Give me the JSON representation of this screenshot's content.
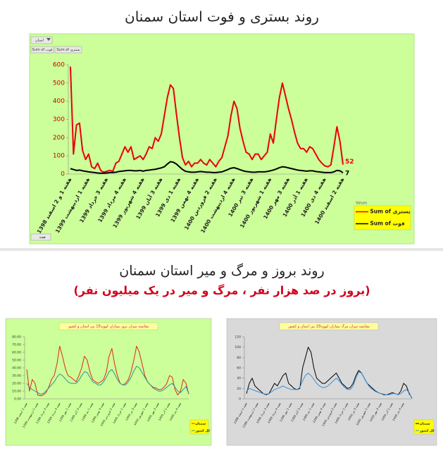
{
  "section": {
    "title": "روند بروز و مرگ و میر استان سمنان",
    "subtitle": "(بروز در صد هزار نفر ، مرگ و میر در یک میلیون نفر)"
  },
  "controls": {
    "filter": "استان",
    "fields": [
      "Sum of فوت",
      "Sum of بستری"
    ],
    "axis_field": "هفته",
    "legend_header": "Values"
  },
  "chart_data": [
    {
      "type": "line",
      "title": "روند بستری و فوت استان سمنان",
      "legend": "bottom-right",
      "data_labels": "last",
      "ylim": [
        0,
        600
      ],
      "yticks": [
        0,
        100,
        200,
        300,
        400,
        500,
        600
      ],
      "categories": [
        "هفته 1 و 2 اسفند 1398",
        null,
        null,
        null,
        null,
        null,
        "هفته 1 اردیبهشت 1399",
        null,
        null,
        null,
        null,
        null,
        "هفته 3 خرداد 1399",
        null,
        null,
        null,
        null,
        null,
        "هفته 4 مرداد 1399",
        null,
        null,
        null,
        null,
        null,
        "هفته 4 شهریور 1399",
        null,
        null,
        null,
        null,
        null,
        "هفته 3 آبان 1399",
        null,
        null,
        null,
        null,
        null,
        "هفته 1 دی 1399",
        null,
        null,
        null,
        null,
        null,
        "هفته 4 بهمن 1399",
        null,
        null,
        null,
        null,
        null,
        "هفته 2 فروردین 1400",
        null,
        null,
        null,
        null,
        null,
        "هفته 4 اردیبهشت 1400",
        null,
        null,
        null,
        null,
        null,
        "هفته 3 تیر 1400",
        null,
        null,
        null,
        null,
        null,
        "هفته 1 شهریور 1400",
        null,
        null,
        null,
        null,
        null,
        "هفته 3 مهر 1400",
        null,
        null,
        null,
        null,
        null,
        "هفته 1 آذر 1400",
        null,
        null,
        null,
        null,
        null,
        "هفته 4 دی 1400",
        null,
        null,
        null,
        null,
        null,
        "هفته 2 اسفند 1400"
      ],
      "series": [
        {
          "name": "Sum of بستری",
          "color": "#e8000b",
          "values": [
            590,
            110,
            270,
            280,
            130,
            80,
            110,
            40,
            30,
            60,
            20,
            10,
            15,
            20,
            15,
            60,
            70,
            110,
            150,
            120,
            150,
            80,
            90,
            100,
            80,
            110,
            150,
            140,
            200,
            180,
            220,
            320,
            420,
            490,
            470,
            330,
            200,
            90,
            50,
            70,
            40,
            60,
            60,
            80,
            60,
            50,
            80,
            60,
            40,
            70,
            90,
            150,
            210,
            320,
            400,
            360,
            250,
            180,
            120,
            110,
            80,
            110,
            110,
            80,
            100,
            120,
            220,
            170,
            300,
            420,
            500,
            430,
            360,
            300,
            230,
            170,
            140,
            140,
            120,
            150,
            140,
            110,
            80,
            60,
            45,
            40,
            50,
            150,
            260,
            180,
            52
          ]
        },
        {
          "name": "Sum of فوت",
          "color": "#000000",
          "values": [
            30,
            25,
            20,
            22,
            18,
            15,
            12,
            10,
            8,
            6,
            5,
            5,
            6,
            8,
            8,
            10,
            14,
            16,
            18,
            20,
            20,
            18,
            18,
            20,
            16,
            20,
            22,
            24,
            26,
            30,
            34,
            40,
            55,
            68,
            65,
            55,
            40,
            25,
            15,
            12,
            10,
            10,
            12,
            14,
            12,
            10,
            10,
            8,
            8,
            10,
            12,
            18,
            25,
            32,
            35,
            30,
            24,
            18,
            14,
            12,
            10,
            10,
            12,
            12,
            12,
            14,
            18,
            22,
            28,
            35,
            40,
            38,
            34,
            30,
            26,
            22,
            20,
            18,
            16,
            18,
            18,
            14,
            12,
            10,
            8,
            8,
            8,
            12,
            20,
            18,
            7
          ]
        }
      ]
    },
    {
      "type": "line",
      "title": "مقایسه میزان بروز بیماران کووید19 بین استان و کشور",
      "legend": "bottom-right",
      "ylim": [
        0,
        80
      ],
      "yticks": [
        {
          "value": 0,
          "label": "0.00"
        },
        {
          "value": 10,
          "label": "10.00"
        },
        {
          "value": 20,
          "label": "20.00"
        },
        {
          "value": 30,
          "label": "30.00"
        },
        {
          "value": 40,
          "label": "40.00"
        },
        {
          "value": 50,
          "label": "50.00"
        },
        {
          "value": 60,
          "label": "60.00"
        },
        {
          "value": 70,
          "label": "70.00"
        },
        {
          "value": 80,
          "label": "80.00"
        }
      ],
      "categories": [
        "هفته 1 اسفند 1398",
        null,
        null,
        null,
        "هفته 1 اردیبهشت 1399",
        null,
        null,
        null,
        "هفته 3 خرداد 1399",
        null,
        null,
        null,
        "هفته 4 مرداد 1399",
        null,
        null,
        null,
        "هفته 1 مهر 1399",
        null,
        null,
        null,
        "هفته 3 آبان 1399",
        null,
        null,
        null,
        "هفته 1 دی 1399",
        null,
        null,
        null,
        "هفته 4 بهمن 1399",
        null,
        null,
        null,
        "هفته 2 فروردین 1400",
        null,
        null,
        null,
        "هفته 1 خرداد 1400",
        null,
        null,
        null,
        "هفته 3 تیر 1400",
        null,
        null,
        null,
        "هفته 1 شهریور 1400",
        null,
        null,
        null,
        "هفته 3 مهر 1400",
        null,
        null,
        null,
        "هفته 1 آذر 1400",
        null,
        null,
        null,
        "هفته 4 دی 1400",
        null,
        null,
        null
      ],
      "series": [
        {
          "name": "سمنان",
          "color": "#e2231a",
          "values": [
            38,
            10,
            25,
            20,
            5,
            4,
            5,
            8,
            15,
            25,
            30,
            45,
            68,
            55,
            40,
            30,
            28,
            25,
            22,
            30,
            40,
            55,
            50,
            35,
            25,
            22,
            20,
            22,
            25,
            35,
            55,
            65,
            45,
            30,
            20,
            18,
            20,
            25,
            35,
            50,
            68,
            60,
            45,
            30,
            22,
            18,
            15,
            14,
            12,
            12,
            15,
            20,
            30,
            28,
            12,
            5,
            10,
            25,
            20,
            6
          ]
        },
        {
          "name": "کل کشور",
          "color": "#2f8f9d",
          "values": [
            20,
            15,
            12,
            10,
            8,
            6,
            7,
            10,
            14,
            18,
            22,
            28,
            32,
            30,
            26,
            22,
            20,
            20,
            20,
            24,
            30,
            35,
            34,
            28,
            22,
            20,
            18,
            18,
            22,
            28,
            35,
            38,
            32,
            25,
            20,
            18,
            18,
            22,
            28,
            36,
            42,
            40,
            34,
            28,
            22,
            18,
            14,
            12,
            10,
            10,
            12,
            15,
            18,
            20,
            15,
            10,
            8,
            12,
            16,
            6.38
          ]
        }
      ]
    },
    {
      "type": "line",
      "title": "مقایسه میزان مرگ بیماران کووید19 بین استان و کشور",
      "legend": "bottom-right",
      "ylim": [
        0,
        120
      ],
      "yticks": [
        0,
        20,
        40,
        60,
        80,
        100,
        120
      ],
      "categories": [
        "هفته 1 اسفند 1398",
        null,
        null,
        null,
        "هفته 1 اردیبهشت 1399",
        null,
        null,
        null,
        "هفته 3 خرداد 1399",
        null,
        null,
        null,
        "هفته 4 مرداد 1399",
        null,
        null,
        null,
        "هفته 1 مهر 1399",
        null,
        null,
        null,
        "هفته 3 آبان 1399",
        null,
        null,
        null,
        "هفته 1 دی 1399",
        null,
        null,
        null,
        "هفته 4 بهمن 1399",
        null,
        null,
        null,
        "هفته 2 فروردین 1400",
        null,
        null,
        null,
        "هفته 1 خرداد 1400",
        null,
        null,
        null,
        "هفته 3 تیر 1400",
        null,
        null,
        null,
        "هفته 1 شهریور 1400",
        null,
        null,
        null,
        "هفته 3 مهر 1400",
        null,
        null,
        null,
        "هفته 1 آذر 1400",
        null,
        null,
        null,
        "هفته 4 دی 1400",
        null,
        null,
        null
      ],
      "series": [
        {
          "name": "سمنان",
          "color": "#000000",
          "values": [
            10,
            30,
            40,
            25,
            20,
            15,
            10,
            8,
            10,
            20,
            30,
            25,
            35,
            45,
            50,
            30,
            25,
            20,
            18,
            20,
            60,
            80,
            100,
            90,
            60,
            40,
            35,
            30,
            30,
            35,
            40,
            45,
            50,
            40,
            30,
            25,
            20,
            22,
            30,
            45,
            55,
            50,
            40,
            30,
            25,
            20,
            15,
            12,
            10,
            8,
            8,
            10,
            12,
            10,
            8,
            15,
            30,
            25,
            10,
            1.58
          ]
        },
        {
          "name": "کل کشور",
          "color": "#3a8fd9",
          "values": [
            15,
            20,
            18,
            16,
            14,
            12,
            10,
            9,
            10,
            14,
            18,
            20,
            22,
            25,
            22,
            20,
            18,
            18,
            18,
            22,
            35,
            45,
            50,
            45,
            38,
            30,
            25,
            22,
            22,
            25,
            30,
            35,
            40,
            35,
            28,
            22,
            18,
            18,
            25,
            40,
            52,
            50,
            40,
            30,
            22,
            18,
            14,
            12,
            10,
            9,
            8,
            8,
            10,
            10,
            8,
            10,
            15,
            18,
            12,
            0.38
          ]
        }
      ]
    }
  ]
}
